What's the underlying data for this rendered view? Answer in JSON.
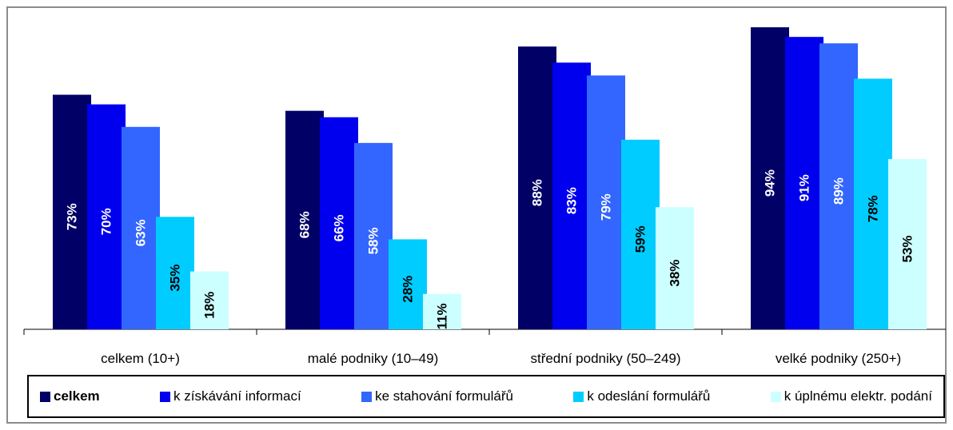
{
  "chart_data": {
    "type": "bar",
    "categories": [
      "celkem (10+)",
      "malé podniky (10–49)",
      "střední podniky (50–249)",
      "velké podniky (250+)"
    ],
    "series": [
      {
        "name": "celkem",
        "values": [
          73,
          68,
          88,
          94
        ],
        "color": "#000066",
        "label_color": "#ffffff"
      },
      {
        "name": "k získávání informací",
        "values": [
          70,
          66,
          83,
          91
        ],
        "color": "#0000ee",
        "label_color": "#ffffff"
      },
      {
        "name": "ke stahování formulářů",
        "values": [
          63,
          58,
          79,
          89
        ],
        "color": "#3366ff",
        "label_color": "#ffffff"
      },
      {
        "name": "k odeslání formulářů",
        "values": [
          35,
          28,
          59,
          78
        ],
        "color": "#00ccff",
        "label_color": "#000000"
      },
      {
        "name": "k úplnému elektr. podání",
        "values": [
          18,
          11,
          38,
          53
        ],
        "color": "#ccffff",
        "label_color": "#000000"
      }
    ],
    "value_suffix": "%",
    "ylim": [
      0,
      100
    ],
    "grid": false,
    "legend_position": "bottom"
  }
}
